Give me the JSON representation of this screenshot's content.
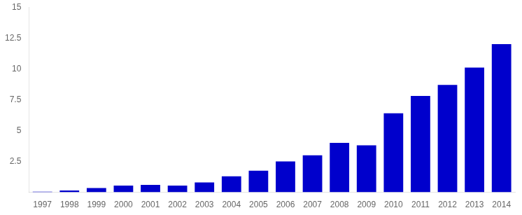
{
  "chart_data": {
    "type": "bar",
    "categories": [
      1997,
      1998,
      1999,
      2000,
      2001,
      2002,
      2003,
      2004,
      2005,
      2006,
      2007,
      2008,
      2009,
      2010,
      2011,
      2012,
      2013,
      2014
    ],
    "values": [
      0.05,
      0.15,
      0.35,
      0.55,
      0.6,
      0.55,
      0.8,
      1.3,
      1.75,
      2.5,
      3.0,
      4.0,
      3.8,
      6.4,
      7.8,
      8.7,
      10.1,
      12.0
    ],
    "color": "#0000CC",
    "ylim": [
      0,
      15
    ],
    "yticks": [
      2.5,
      5,
      7.5,
      10,
      12.5,
      15
    ],
    "grid": false
  }
}
